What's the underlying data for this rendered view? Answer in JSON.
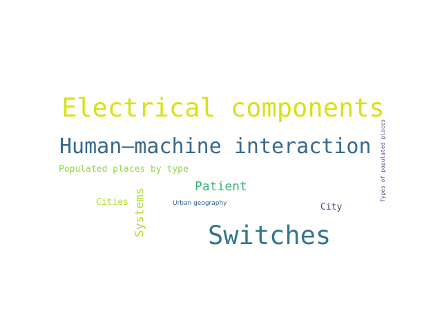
{
  "word_cloud": {
    "words": [
      {
        "text": "Electrical components",
        "color": "#d8e219"
      },
      {
        "text": "Human–machine interaction",
        "color": "#39688e"
      },
      {
        "text": "Populated places by type",
        "color": "#8fd744"
      },
      {
        "text": "Patient",
        "color": "#35b779"
      },
      {
        "text": "Cities",
        "color": "#b5de2b"
      },
      {
        "text": "Systems",
        "color": "#b5de2b"
      },
      {
        "text": "Urban geography",
        "color": "#355f8d"
      },
      {
        "text": "City",
        "color": "#3e4a89"
      },
      {
        "text": "Switches",
        "color": "#34768c"
      },
      {
        "text": "Types of populated places",
        "color": "#63478b"
      }
    ]
  }
}
